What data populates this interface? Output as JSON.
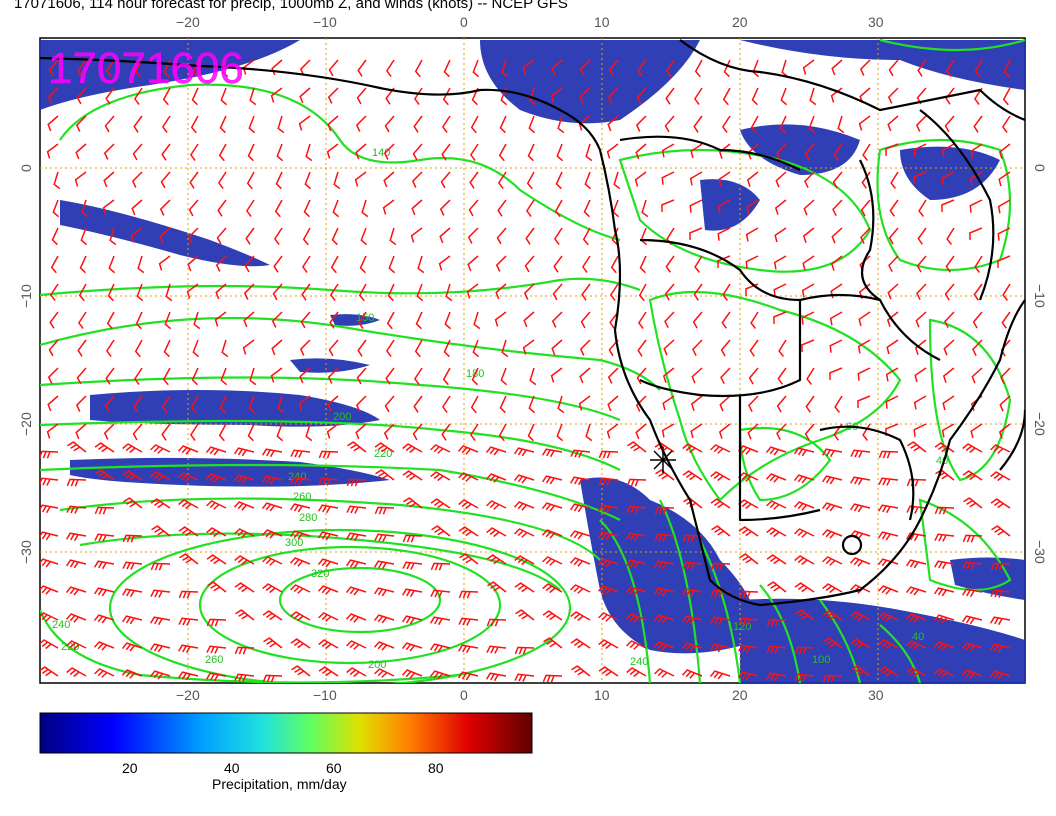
{
  "title": "17071606, 114 hour forecast for precip, 1000mb Z, and winds (knots) -- NCEP GFS",
  "stamp": "17071606",
  "axes": {
    "lon_ticks": [
      "−20",
      "−10",
      "0",
      "10",
      "20",
      "30"
    ],
    "lat_ticks": [
      "0",
      "−10",
      "−20",
      "−30"
    ]
  },
  "contour_labels": [
    "140",
    "150",
    "180",
    "200",
    "220",
    "240",
    "260",
    "280",
    "300",
    "320",
    "120",
    "60",
    "40",
    "100"
  ],
  "colorbar": {
    "label": "Precipitation, mm/day",
    "ticks": [
      "20",
      "40",
      "60",
      "80"
    ],
    "colors": [
      "#000080",
      "#0000ff",
      "#00a0ff",
      "#20e0e0",
      "#60ff60",
      "#e0e000",
      "#ff8000",
      "#e00000",
      "#600000"
    ]
  },
  "colors": {
    "precip": "#1e2fb0",
    "contour": "#22e022",
    "wind": "#ff1010",
    "coast": "#000000",
    "grid": "#e0a000",
    "stamp": "#ff00ff"
  }
}
